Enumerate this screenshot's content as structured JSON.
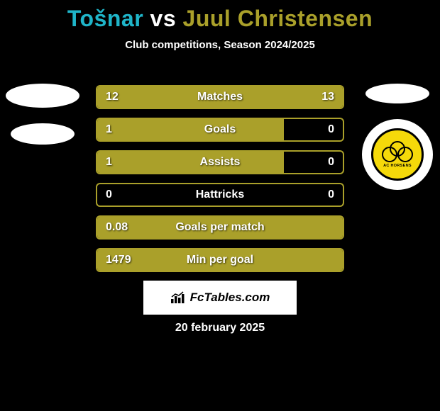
{
  "header": {
    "title_player1": "Tošnar",
    "title_vs": " vs ",
    "title_player2": "Juul Christensen",
    "player1_color": "#1fb5c9",
    "player2_color": "#aaa02a",
    "subtitle": "Club competitions, Season 2024/2025"
  },
  "stats": {
    "border_color": "#aaa02a",
    "fill_color": "#aaa02a",
    "rows": [
      {
        "label": "Matches",
        "left_val": "12",
        "right_val": "13",
        "left_pct": 48,
        "right_pct": 52
      },
      {
        "label": "Goals",
        "left_val": "1",
        "right_val": "0",
        "left_pct": 76,
        "right_pct": 0
      },
      {
        "label": "Assists",
        "left_val": "1",
        "right_val": "0",
        "left_pct": 76,
        "right_pct": 0
      },
      {
        "label": "Hattricks",
        "left_val": "0",
        "right_val": "0",
        "left_pct": 0,
        "right_pct": 0
      },
      {
        "label": "Goals per match",
        "left_val": "0.08",
        "right_val": "",
        "left_pct": 100,
        "right_pct": 0
      },
      {
        "label": "Min per goal",
        "left_val": "1479",
        "right_val": "",
        "left_pct": 100,
        "right_pct": 0
      }
    ]
  },
  "club": {
    "name": "AC HORSENS",
    "badge_bg": "#f5d90a"
  },
  "brand": {
    "text": "FcTables.com"
  },
  "footer": {
    "date": "20 february 2025"
  }
}
